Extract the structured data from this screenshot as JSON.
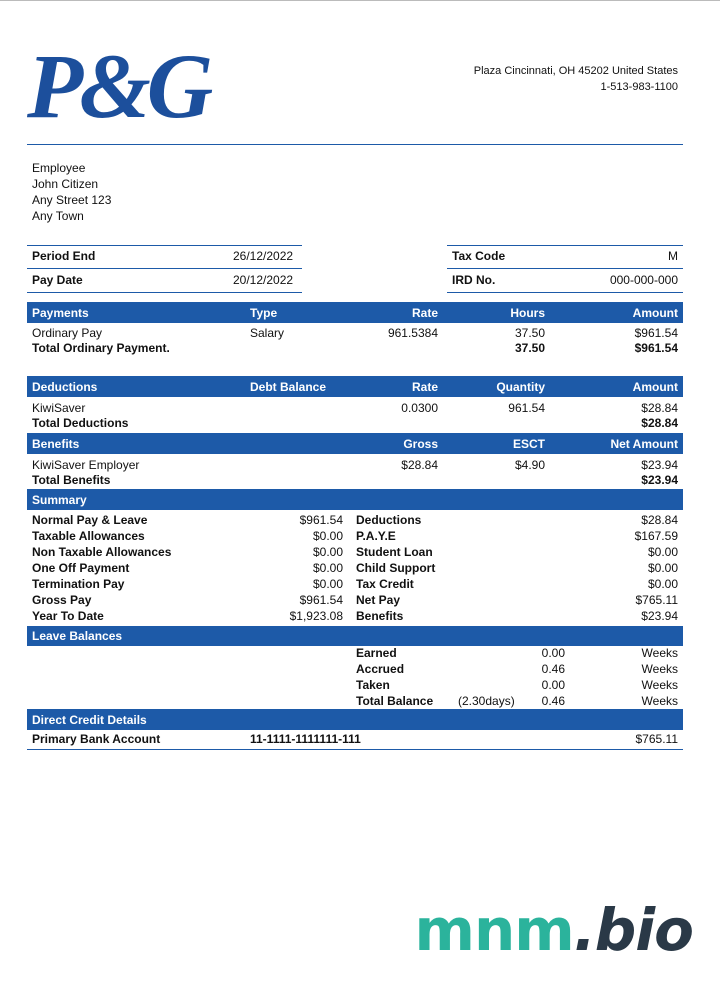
{
  "header": {
    "logo": "P&G",
    "address": "Plaza Cincinnati, OH 45202 United States",
    "phone": "1-513-983-1100"
  },
  "employee": [
    "Employee",
    "John Citizen",
    "Any Street 123",
    "Any Town"
  ],
  "period": {
    "rows": [
      [
        "Period End",
        "26/12/2022",
        "Tax Code",
        "M"
      ],
      [
        "Pay Date",
        "20/12/2022",
        "IRD No.",
        "000-000-000"
      ]
    ]
  },
  "payments": {
    "header": [
      "Payments",
      "Type",
      "Rate",
      "Hours",
      "Amount"
    ],
    "rows": [
      [
        "Ordinary Pay",
        "Salary",
        "961.5384",
        "37.50",
        "$961.54"
      ],
      [
        "Total Ordinary Payment.",
        null,
        null,
        "37.50",
        "$961.54"
      ]
    ]
  },
  "deductions": {
    "header": [
      "Deductions",
      "Debt Balance",
      "Rate",
      "Quantity",
      "Amount"
    ],
    "rows": [
      [
        "KiwiSaver",
        null,
        "0.0300",
        "961.54",
        "$28.84"
      ],
      [
        "Total Deductions",
        null,
        null,
        null,
        "$28.84"
      ]
    ]
  },
  "benefits": {
    "header": [
      "Benefits",
      null,
      "Gross",
      "ESCT",
      "Net Amount"
    ],
    "rows": [
      [
        "KiwiSaver Employer",
        null,
        "$28.84",
        "$4.90",
        "$23.94"
      ],
      [
        "Total Benefits",
        null,
        null,
        null,
        "$23.94"
      ]
    ]
  },
  "summary": {
    "title": "Summary",
    "rows": [
      [
        "Normal Pay & Leave",
        "$961.54",
        "Deductions",
        "$28.84"
      ],
      [
        "Taxable Allowances",
        "$0.00",
        "P.A.Y.E",
        "$167.59"
      ],
      [
        "Non Taxable Allowances",
        "$0.00",
        "Student Loan",
        "$0.00"
      ],
      [
        "One Off Payment",
        "$0.00",
        "Child Support",
        "$0.00"
      ],
      [
        "Termination Pay",
        "$0.00",
        "Tax Credit",
        "$0.00"
      ],
      [
        "Gross Pay",
        "$961.54",
        "Net Pay",
        "$765.11"
      ],
      [
        "Year To Date",
        "$1,923.08",
        "Benefits",
        "$23.94"
      ]
    ]
  },
  "leave_balances": {
    "title": "Leave Balances",
    "rows": [
      [
        "Earned",
        null,
        "0.00",
        "Weeks"
      ],
      [
        "Accrued",
        null,
        "0.46",
        "Weeks"
      ],
      [
        "Taken",
        null,
        "0.00",
        "Weeks"
      ],
      [
        "Total Balance",
        "(2.30days)",
        "0.46",
        "Weeks"
      ]
    ]
  },
  "direct_credit": {
    "title": "Direct Credit Details",
    "rows": [
      [
        "Primary Bank Account",
        "11-1111-1111111-111",
        "$765.11"
      ]
    ]
  },
  "watermark": {
    "part1": "mnm",
    "part2": ".bio"
  }
}
